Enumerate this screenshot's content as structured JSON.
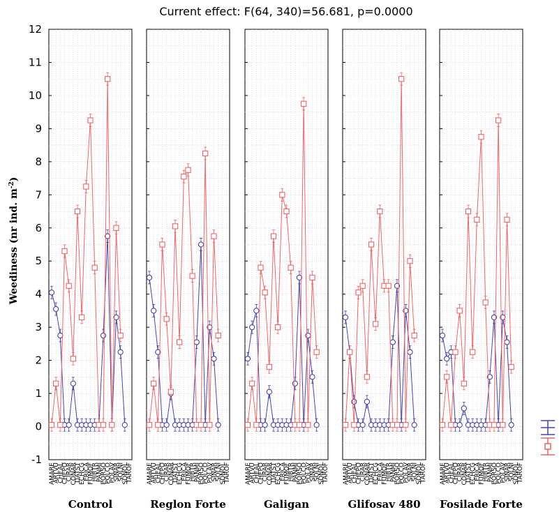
{
  "chart_data": {
    "type": "line",
    "title": "Current effect: F(64, 340)=56.681, p=0.0000",
    "ylabel": "Weediness (nr ind. m",
    "ylabel_sup": "-2",
    "ylabel_close": ")",
    "ylim": [
      -1,
      12
    ],
    "yticks": [
      -1,
      0,
      1,
      2,
      3,
      4,
      5,
      6,
      7,
      8,
      9,
      10,
      11,
      12
    ],
    "grid": true,
    "categories": [
      "AMARE",
      "ARTVU",
      "CHEAL",
      "CHEPO",
      "CIRAR",
      "CONAR",
      "DATST",
      "ECHCG",
      "ERICA",
      "FUMOF",
      "HIBTR",
      "PANMI",
      "PORSO",
      "POLCO",
      "POLAV",
      "SINAR",
      "SOLNI",
      "SONOL",
      "TAROF"
    ],
    "panels": [
      {
        "label": "Control",
        "series": [
          {
            "color": "#4444aa",
            "marker": "circle",
            "values": [
              4.05,
              3.55,
              2.75,
              0.05,
              0.05,
              1.3,
              0.05,
              0.05,
              0.05,
              0.05,
              0.05,
              0.05,
              2.75,
              5.75,
              0.05,
              3.3,
              2.25,
              0.05,
              null
            ]
          },
          {
            "color": "#ee6666",
            "marker": "square",
            "values": [
              0.05,
              1.3,
              0.05,
              5.3,
              4.25,
              2.05,
              6.5,
              3.3,
              7.25,
              9.25,
              4.8,
              0.05,
              0.05,
              10.5,
              0.05,
              6.0,
              2.75,
              null,
              null
            ]
          }
        ]
      },
      {
        "label": "Reglon Forte",
        "series": [
          {
            "color": "#4444aa",
            "marker": "circle",
            "values": [
              4.5,
              3.5,
              2.25,
              0.05,
              0.05,
              1.0,
              0.05,
              0.05,
              0.05,
              0.05,
              0.05,
              2.55,
              5.5,
              0.05,
              3.0,
              2.05,
              0.05,
              null,
              null
            ]
          },
          {
            "color": "#ee6666",
            "marker": "square",
            "values": [
              0.05,
              1.3,
              0.05,
              5.5,
              3.25,
              1.05,
              6.05,
              2.55,
              7.55,
              7.75,
              4.55,
              0.05,
              0.05,
              8.25,
              0.05,
              5.75,
              2.75,
              null,
              null
            ]
          }
        ]
      },
      {
        "label": "Galigan",
        "series": [
          {
            "color": "#4444aa",
            "marker": "circle",
            "values": [
              2.05,
              3.0,
              3.5,
              0.05,
              0.05,
              1.05,
              0.05,
              0.05,
              0.05,
              0.05,
              0.05,
              1.3,
              4.5,
              0.05,
              2.75,
              1.5,
              0.05,
              null,
              null
            ]
          },
          {
            "color": "#ee6666",
            "marker": "square",
            "values": [
              0.05,
              1.3,
              0.05,
              4.8,
              4.05,
              1.8,
              5.75,
              3.0,
              7.0,
              6.5,
              4.8,
              0.05,
              0.05,
              9.75,
              0.05,
              4.5,
              2.25,
              null,
              null
            ]
          }
        ]
      },
      {
        "label": "Glifosav 480",
        "series": [
          {
            "color": "#4444aa",
            "marker": "circle",
            "values": [
              3.3,
              2.25,
              0.75,
              0.05,
              0.05,
              0.75,
              0.05,
              0.05,
              0.05,
              0.05,
              0.05,
              2.55,
              4.25,
              0.05,
              3.5,
              2.25,
              0.05,
              null,
              null
            ]
          },
          {
            "color": "#ee6666",
            "marker": "square",
            "values": [
              0.05,
              2.25,
              0.05,
              4.05,
              4.25,
              1.5,
              5.5,
              3.1,
              6.5,
              4.25,
              4.25,
              0.05,
              0.05,
              10.5,
              0.05,
              5.0,
              2.75,
              null,
              null
            ]
          }
        ]
      },
      {
        "label": "Fosilade Forte",
        "series": [
          {
            "color": "#4444aa",
            "marker": "circle",
            "values": [
              2.75,
              2.05,
              2.25,
              0.05,
              0.05,
              0.55,
              0.05,
              0.05,
              0.05,
              0.05,
              0.05,
              1.5,
              3.3,
              0.05,
              3.3,
              2.55,
              0.05,
              null,
              null
            ]
          },
          {
            "color": "#ee6666",
            "marker": "square",
            "values": [
              0.05,
              1.5,
              0.05,
              2.25,
              3.5,
              1.3,
              6.5,
              2.25,
              6.25,
              8.75,
              3.75,
              0.05,
              0.05,
              9.25,
              0.05,
              6.25,
              1.8,
              null,
              null
            ]
          }
        ]
      }
    ],
    "legend_placement": "bottom-right"
  }
}
